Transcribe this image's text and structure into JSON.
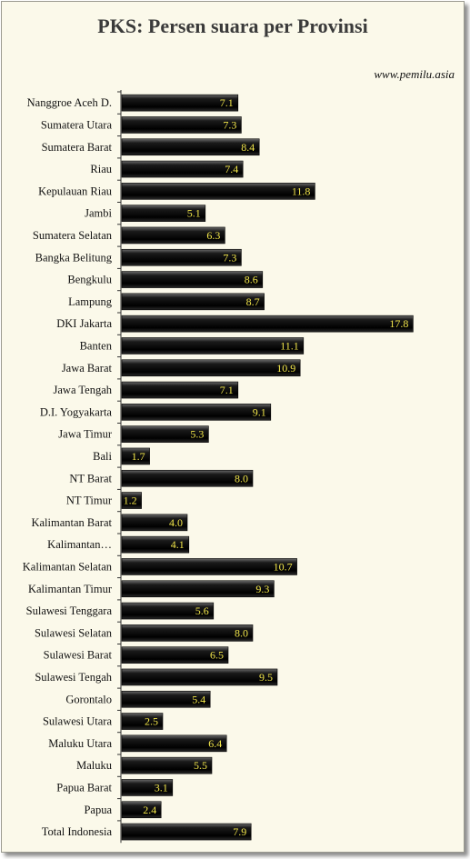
{
  "title": "PKS: Persen suara per Provinsi",
  "source": "www.pemilu.asia",
  "colors": {
    "bar": "#0a0a0a",
    "value_text": "#f2e64a",
    "background": "#fbf9ea"
  },
  "chart_data": {
    "type": "bar",
    "orientation": "horizontal",
    "title": "PKS: Persen suara per Provinsi",
    "xlabel": "",
    "ylabel": "",
    "xlim": [
      0,
      20
    ],
    "grid": false,
    "categories": [
      "Nanggroe Aceh D.",
      "Sumatera Utara",
      "Sumatera Barat",
      "Riau",
      "Kepulauan Riau",
      "Jambi",
      "Sumatera Selatan",
      "Bangka Belitung",
      "Bengkulu",
      "Lampung",
      "DKI Jakarta",
      "Banten",
      "Jawa Barat",
      "Jawa Tengah",
      "D.I. Yogyakarta",
      "Jawa Timur",
      "Bali",
      "NT Barat",
      "NT Timur",
      "Kalimantan Barat",
      "Kalimantan…",
      "Kalimantan Selatan",
      "Kalimantan Timur",
      "Sulawesi Tenggara",
      "Sulawesi Selatan",
      "Sulawesi Barat",
      "Sulawesi Tengah",
      "Gorontalo",
      "Sulawesi Utara",
      "Maluku Utara",
      "Maluku",
      "Papua Barat",
      "Papua",
      "Total Indonesia"
    ],
    "values": [
      7.1,
      7.3,
      8.4,
      7.4,
      11.8,
      5.1,
      6.3,
      7.3,
      8.6,
      8.7,
      17.8,
      11.1,
      10.9,
      7.1,
      9.1,
      5.3,
      1.7,
      8.0,
      1.2,
      4.0,
      4.1,
      10.7,
      9.3,
      5.6,
      8.0,
      6.5,
      9.5,
      5.4,
      2.5,
      6.4,
      5.5,
      3.1,
      2.4,
      7.9
    ],
    "value_labels": [
      "7.1",
      "7.3",
      "8.4",
      "7.4",
      "11.8",
      "5.1",
      "6.3",
      "7.3",
      "8.6",
      "8.7",
      "17.8",
      "11.1",
      "10.9",
      "7.1",
      "9.1",
      "5.3",
      "1.7",
      "8.0",
      "1.2",
      "4.0",
      "4.1",
      "10.7",
      "9.3",
      "5.6",
      "8.0",
      "6.5",
      "9.5",
      "5.4",
      "2.5",
      "6.4",
      "5.5",
      "3.1",
      "2.4",
      "7.9"
    ]
  }
}
